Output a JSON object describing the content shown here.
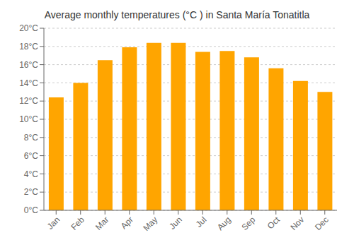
{
  "chart_data": {
    "type": "bar",
    "title": "Average monthly temperatures (°C ) in Santa María Tonatitla",
    "categories": [
      "Jan",
      "Feb",
      "Mar",
      "Apr",
      "May",
      "Jun",
      "Jul",
      "Aug",
      "Sep",
      "Oct",
      "Nov",
      "Dec"
    ],
    "values": [
      12.4,
      14.0,
      16.5,
      17.9,
      18.4,
      18.4,
      17.4,
      17.5,
      16.8,
      15.6,
      14.2,
      13.0
    ],
    "color": "#FFA500",
    "ylim": [
      0,
      20
    ],
    "yticks": [
      {
        "value": 0,
        "label": "0°C"
      },
      {
        "value": 2,
        "label": "2°C"
      },
      {
        "value": 4,
        "label": "4°C"
      },
      {
        "value": 6,
        "label": "6°C"
      },
      {
        "value": 8,
        "label": "8°C"
      },
      {
        "value": 10,
        "label": "10°C"
      },
      {
        "value": 12,
        "label": "12°C"
      },
      {
        "value": 14,
        "label": "14°C"
      },
      {
        "value": 16,
        "label": "16°C"
      },
      {
        "value": 18,
        "label": "18°C"
      },
      {
        "value": 20,
        "label": "20°C"
      }
    ],
    "grid": true
  }
}
